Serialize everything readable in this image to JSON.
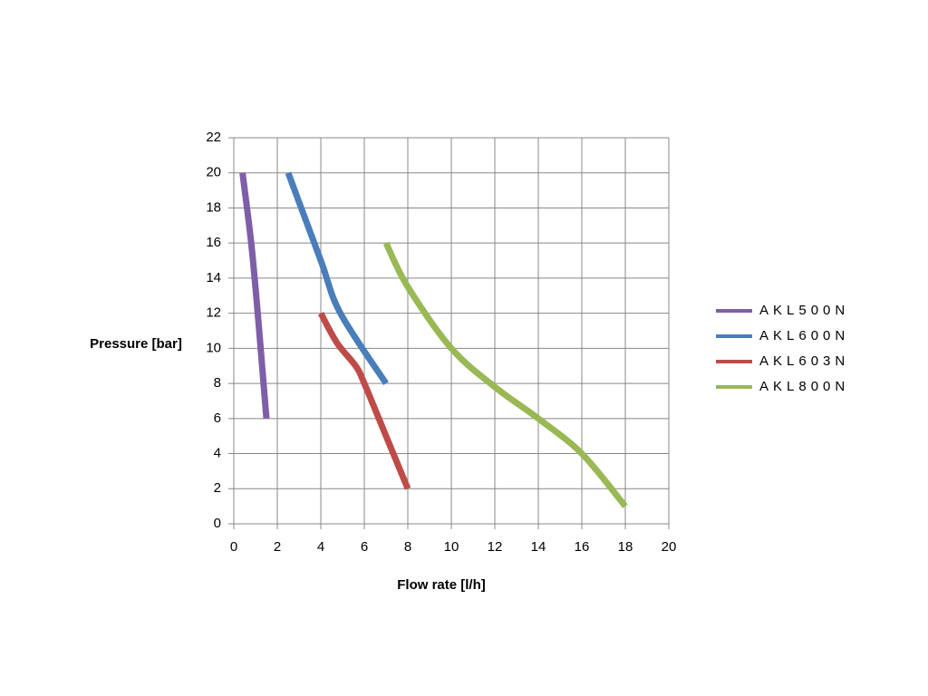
{
  "chart_data": {
    "type": "line",
    "xlabel": "Flow rate [l/h]",
    "ylabel": "Pressure [bar]",
    "xlim": [
      0,
      20
    ],
    "xticks": [
      0,
      2,
      4,
      6,
      8,
      10,
      12,
      14,
      16,
      18,
      20
    ],
    "ylim": [
      0,
      22
    ],
    "yticks": [
      0,
      2,
      4,
      6,
      8,
      10,
      12,
      14,
      16,
      18,
      20,
      22
    ],
    "grid": true,
    "legend": "right",
    "series": [
      {
        "name": "AKL500N",
        "color": "#7f5ea8",
        "x": [
          0.4,
          0.8,
          1.1,
          1.3,
          1.5
        ],
        "values": [
          20,
          16,
          12,
          9,
          6
        ]
      },
      {
        "name": "AKL600N",
        "color": "#4a7ebb",
        "x": [
          2.5,
          4,
          4.9,
          7
        ],
        "values": [
          20,
          15,
          12,
          8
        ]
      },
      {
        "name": "AKL603N",
        "color": "#be4b48",
        "x": [
          4,
          4.75,
          5.6,
          6,
          7,
          8
        ],
        "values": [
          12,
          10.3,
          9,
          8,
          5,
          2
        ]
      },
      {
        "name": "AKL800N",
        "color": "#98b954",
        "x": [
          7,
          8,
          10,
          12,
          14,
          16,
          18
        ],
        "values": [
          16,
          13.5,
          10,
          7.8,
          6,
          4,
          1
        ]
      }
    ]
  }
}
